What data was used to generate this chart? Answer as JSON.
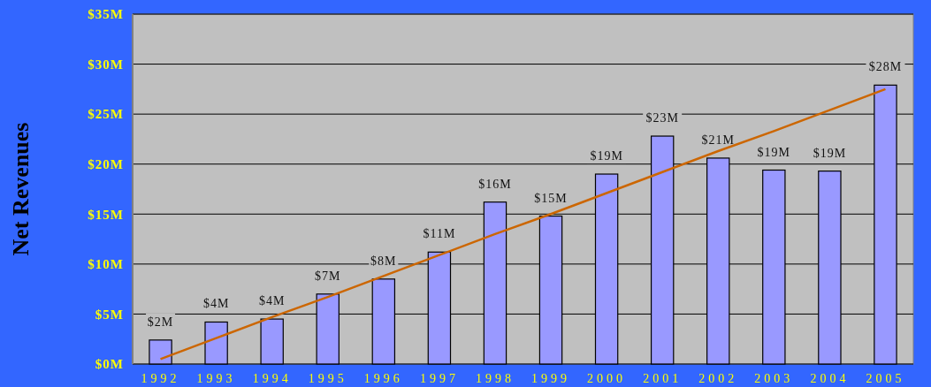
{
  "chart_data": {
    "type": "bar",
    "ylabel": "Net Revenues",
    "categories": [
      "1992",
      "1993",
      "1994",
      "1995",
      "1996",
      "1997",
      "1998",
      "1999",
      "2000",
      "2001",
      "2002",
      "2003",
      "2004",
      "2005"
    ],
    "series": [
      {
        "color": "#9999ff",
        "values": [
          2.4,
          4.2,
          4.5,
          7.0,
          8.5,
          11.2,
          16.2,
          14.8,
          19.0,
          22.8,
          20.6,
          19.4,
          19.3,
          27.9
        ],
        "value_labels": [
          "$2M",
          "$4M",
          "$4M",
          "$7M",
          "$8M",
          "$11M",
          "$16M",
          "$15M",
          "$19M",
          "$23M",
          "$21M",
          "$19M",
          "$19M",
          "$28M"
        ]
      },
      {
        "type": "line",
        "color": "#cc6600",
        "values": [
          0.5,
          2.6,
          4.7,
          6.7,
          8.8,
          10.9,
          13.0,
          15.0,
          17.1,
          19.2,
          21.3,
          23.3,
          25.4,
          27.5
        ]
      }
    ],
    "ylim": [
      0,
      35
    ],
    "yticks": [
      {
        "value": 0,
        "label": "$0M"
      },
      {
        "value": 5,
        "label": "$5M"
      },
      {
        "value": 10,
        "label": "$10M"
      },
      {
        "value": 15,
        "label": "$15M"
      },
      {
        "value": 20,
        "label": "$20M"
      },
      {
        "value": 25,
        "label": "$25M"
      },
      {
        "value": 30,
        "label": "$30M"
      },
      {
        "value": 35,
        "label": "$35M"
      }
    ],
    "grid": "y"
  }
}
